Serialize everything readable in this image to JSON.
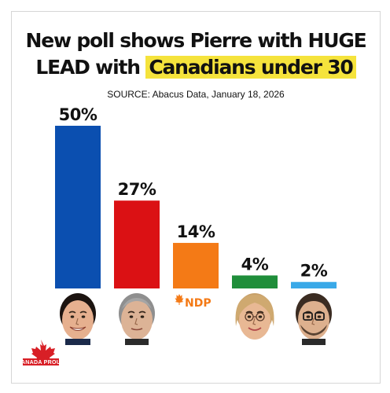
{
  "chart_data": {
    "type": "bar",
    "title_prefix": "New poll shows Pierre with HUGE",
    "title_line2_plain": "LEAD with",
    "title_line2_highlight": "Canadians under 30",
    "source": "SOURCE: Abacus Data, January 18, 2026",
    "series": [
      {
        "values": [
          50,
          27,
          14,
          4,
          2
        ]
      }
    ],
    "value_labels": [
      "50%",
      "27%",
      "14%",
      "4%",
      "2%"
    ],
    "colors": [
      "#0b4fb0",
      "#db1114",
      "#f47a16",
      "#1f8e3a",
      "#3aa9e8"
    ],
    "ylim": [
      0,
      50
    ],
    "grid": false,
    "bar_icons": [
      "conservative-leader-photo",
      "liberal-leader-photo",
      "ndp-logo",
      "green-leader-photo",
      "bloc-leader-photo"
    ]
  },
  "ndp_logo_text": "NDP",
  "canada_proud_logo_text": "CANADA PROUD"
}
